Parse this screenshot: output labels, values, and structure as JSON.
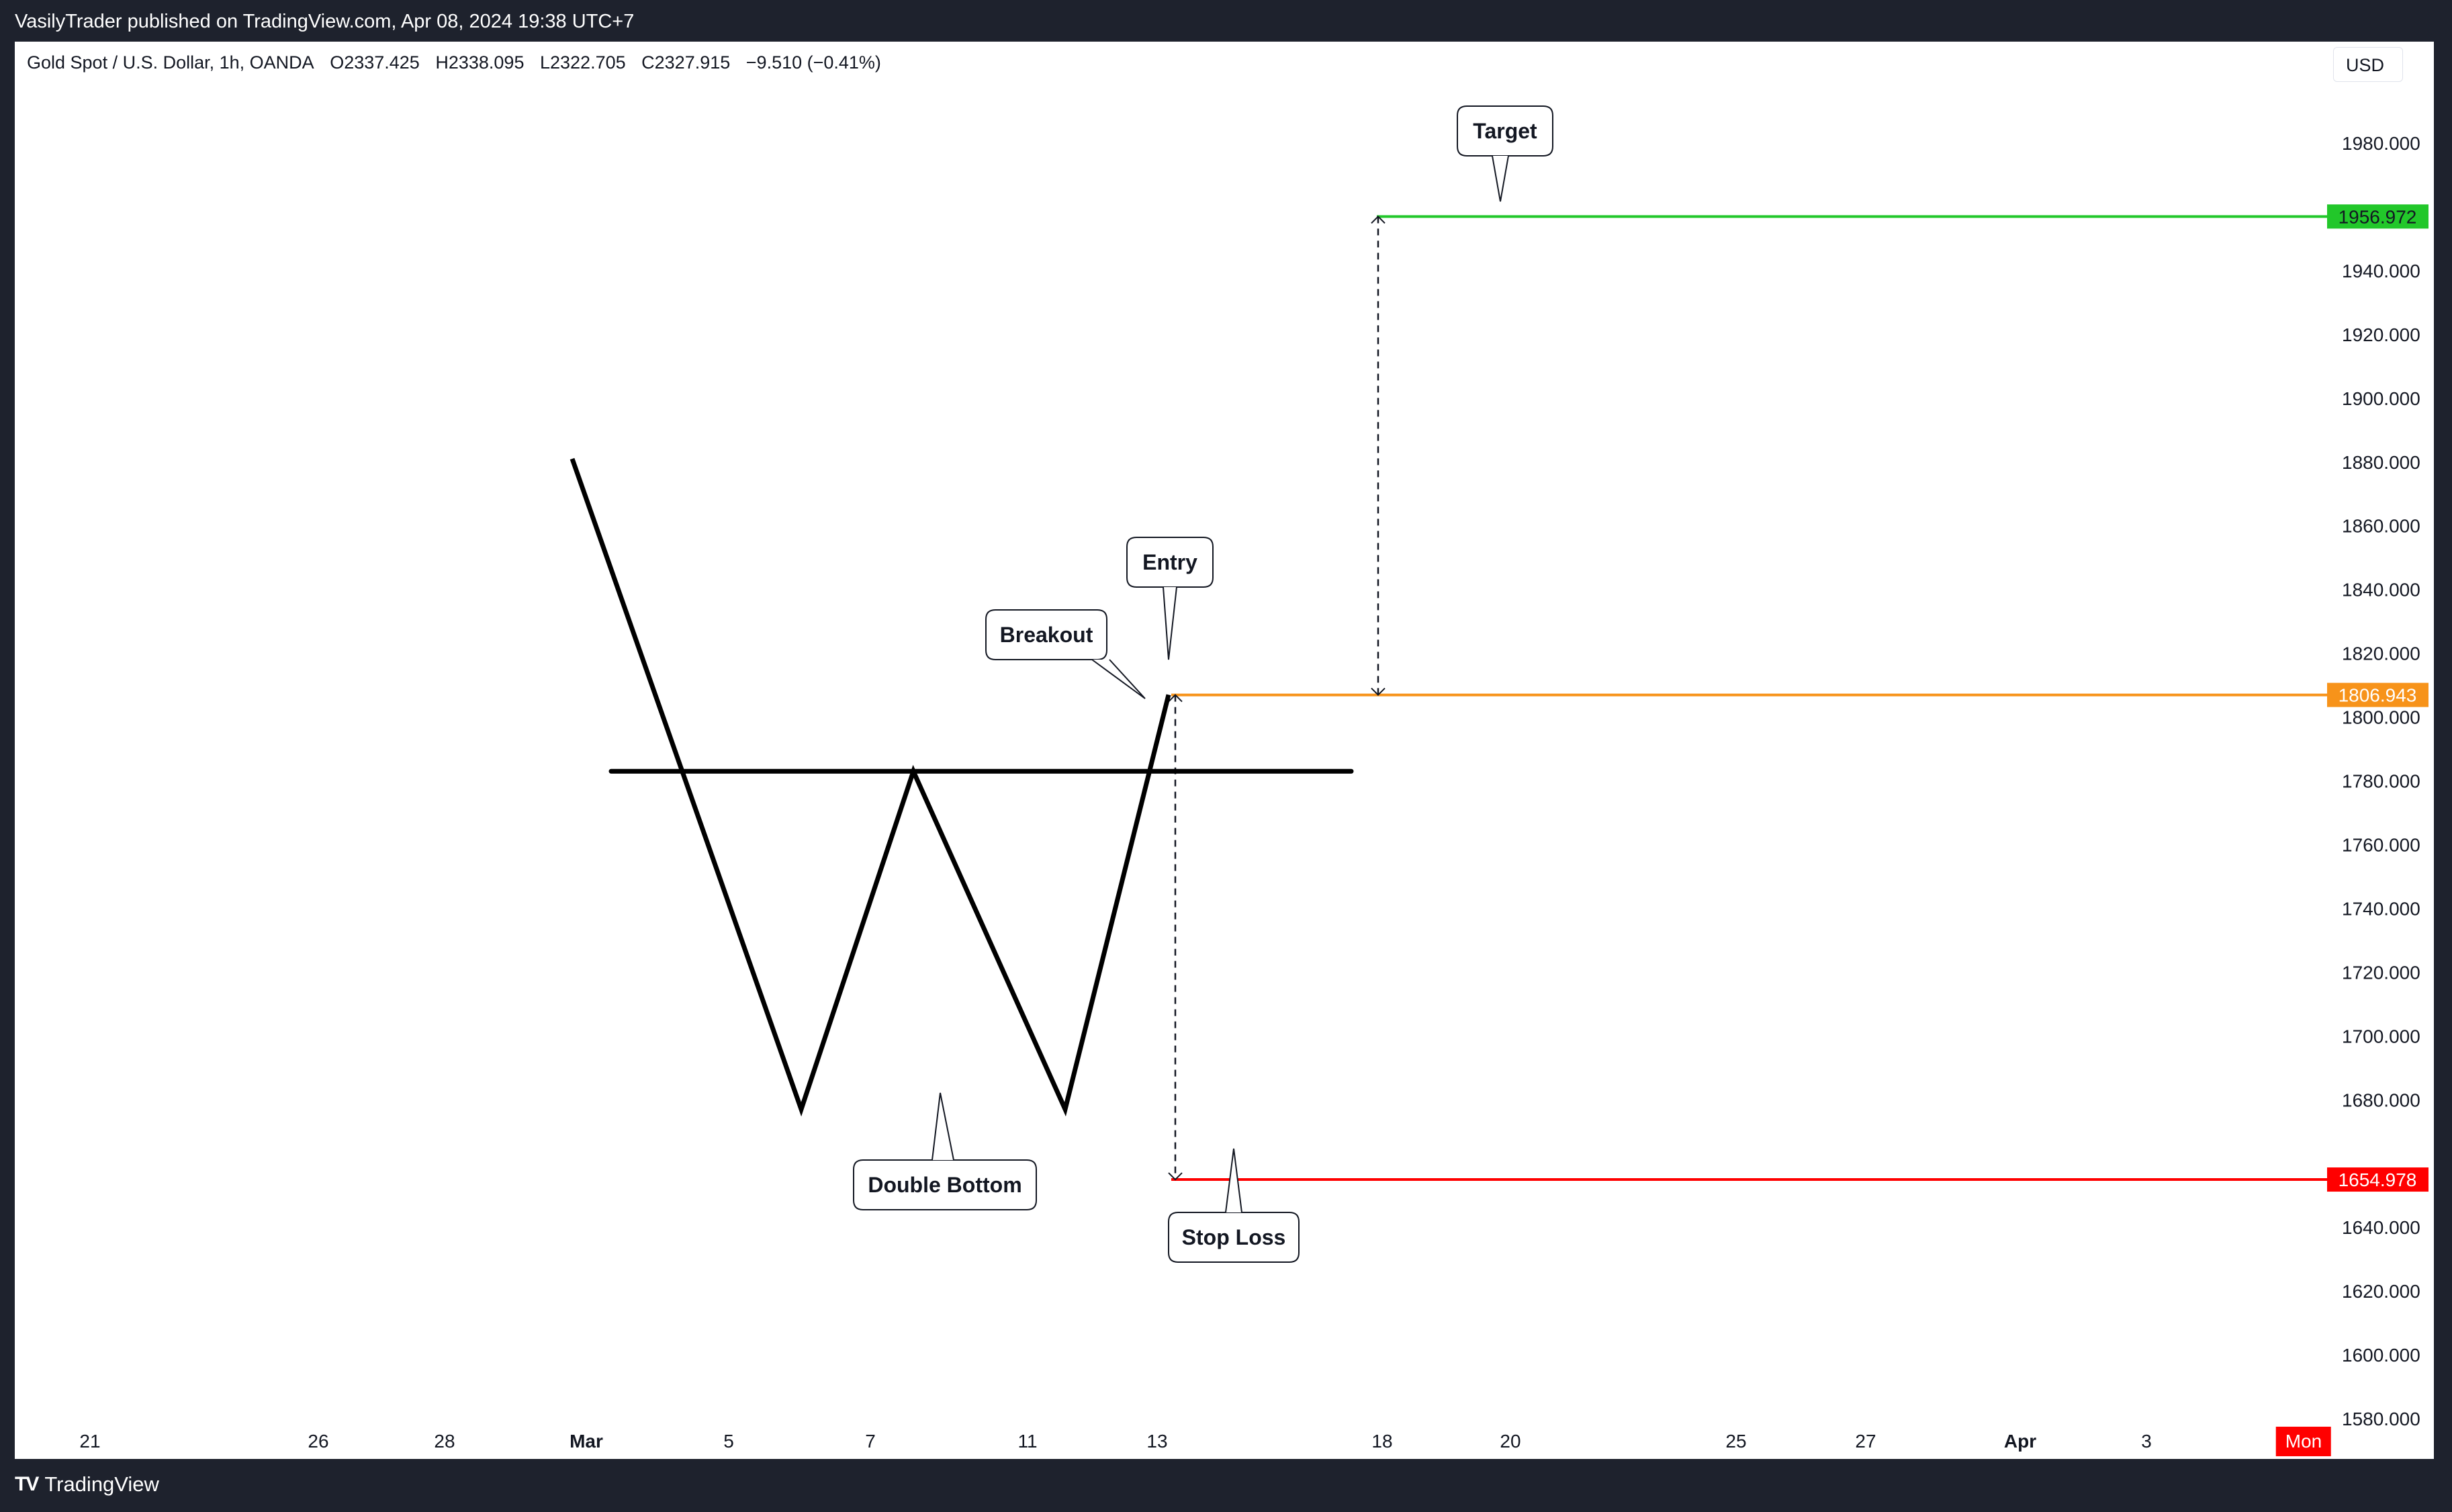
{
  "publisher_line": "VasilyTrader published on TradingView.com, Apr 08, 2024 19:38 UTC+7",
  "symbol": {
    "name": "Gold Spot / U.S. Dollar, 1h, OANDA",
    "open": "O2337.425",
    "high": "H2338.095",
    "low": "L2322.705",
    "close": "C2327.915",
    "change": "−9.510 (−0.41%)"
  },
  "currency": "USD",
  "brand": "TradingView",
  "brand_logo": "TV",
  "chart_data": {
    "type": "line",
    "y_axis_ticks": [
      1980,
      1940,
      1920,
      1900,
      1880,
      1860,
      1840,
      1820,
      1800,
      1780,
      1760,
      1740,
      1720,
      1700,
      1680,
      1640,
      1620,
      1600,
      1580
    ],
    "y_axis_labels": [
      "1980.000",
      "1940.000",
      "1920.000",
      "1900.000",
      "1880.000",
      "1860.000",
      "1840.000",
      "1820.000",
      "1800.000",
      "1780.000",
      "1760.000",
      "1740.000",
      "1720.000",
      "1700.000",
      "1680.000",
      "1640.000",
      "1620.000",
      "1600.000",
      "1580.000"
    ],
    "ylim": [
      1558,
      2000
    ],
    "x_axis_ticks": [
      {
        "label": "21",
        "bold": false,
        "highlight": false
      },
      {
        "label": "26",
        "bold": false,
        "highlight": false
      },
      {
        "label": "28",
        "bold": false,
        "highlight": false
      },
      {
        "label": "Mar",
        "bold": true,
        "highlight": false
      },
      {
        "label": "5",
        "bold": false,
        "highlight": false
      },
      {
        "label": "7",
        "bold": false,
        "highlight": false
      },
      {
        "label": "11",
        "bold": false,
        "highlight": false
      },
      {
        "label": "13",
        "bold": false,
        "highlight": false
      },
      {
        "label": "18",
        "bold": false,
        "highlight": false
      },
      {
        "label": "20",
        "bold": false,
        "highlight": false
      },
      {
        "label": "25",
        "bold": false,
        "highlight": false
      },
      {
        "label": "27",
        "bold": false,
        "highlight": false
      },
      {
        "label": "Apr",
        "bold": true,
        "highlight": false
      },
      {
        "label": "3",
        "bold": false,
        "highlight": false
      },
      {
        "label": "Mon",
        "bold": false,
        "highlight": true
      }
    ],
    "pattern_line": {
      "name": "Double Bottom",
      "points": [
        {
          "x": "Mar 1",
          "y": 1881
        },
        {
          "x": "Mar 6",
          "y": 1677
        },
        {
          "x": "Mar 8",
          "y": 1783
        },
        {
          "x": "Mar 11",
          "y": 1677
        },
        {
          "x": "Mar 13",
          "y": 1807
        }
      ]
    },
    "neckline": {
      "x_start": "Mar 1",
      "x_end": "Mar 16",
      "y": 1783
    },
    "levels": [
      {
        "name": "Target",
        "value": 1956.972,
        "label": "1956.972",
        "color": "#22c72a"
      },
      {
        "name": "Entry",
        "value": 1806.943,
        "label": "1806.943",
        "color": "#f7931a"
      },
      {
        "name": "Stop Loss",
        "value": 1654.978,
        "label": "1654.978",
        "color": "#ff0000"
      }
    ],
    "annotations": [
      {
        "text": "Target"
      },
      {
        "text": "Entry"
      },
      {
        "text": "Breakout"
      },
      {
        "text": "Double Bottom"
      },
      {
        "text": "Stop Loss"
      }
    ]
  }
}
